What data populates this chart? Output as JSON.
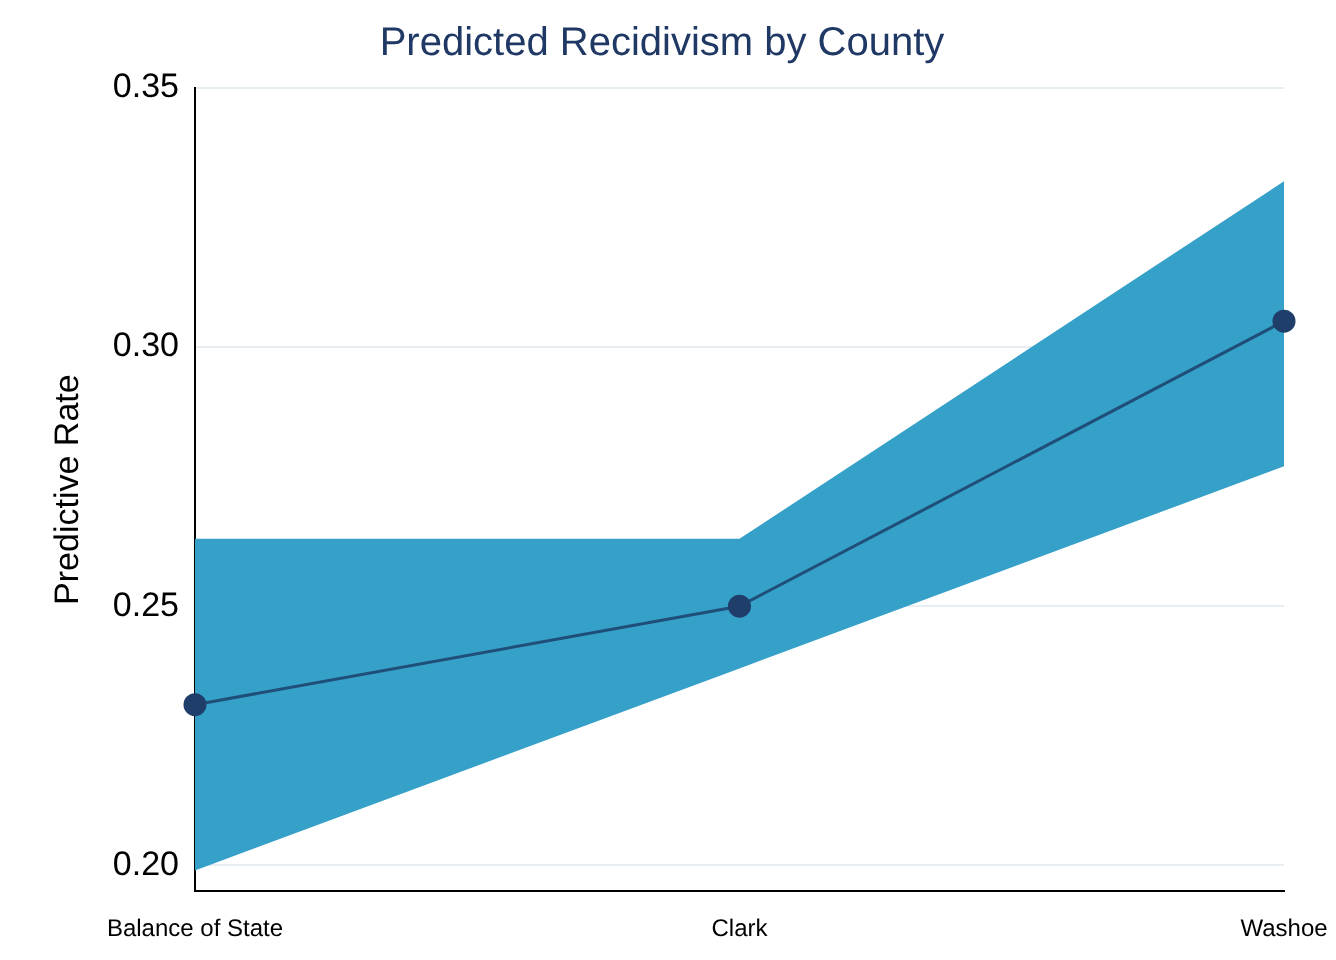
{
  "chart_data": {
    "type": "line",
    "title": "Predicted Recidivism by County",
    "ylabel": "Predictive Rate",
    "categories": [
      "Balance of State",
      "Clark",
      "Washoe"
    ],
    "series": [
      {
        "name": null,
        "color": "#1f4e79",
        "values": [
          0.231,
          0.25,
          0.305
        ],
        "lower": [
          0.199,
          0.238,
          0.277
        ],
        "upper": [
          0.263,
          0.263,
          0.332
        ]
      }
    ],
    "ylim": [
      0.195,
      0.35
    ],
    "yticks": [
      {
        "value": 0.2,
        "label": "0.20"
      },
      {
        "value": 0.25,
        "label": "0.25"
      },
      {
        "value": 0.3,
        "label": "0.30"
      },
      {
        "value": 0.35,
        "label": "0.35"
      }
    ],
    "grid": "y",
    "marker": "circle",
    "line_style": "solid",
    "legend": false
  }
}
